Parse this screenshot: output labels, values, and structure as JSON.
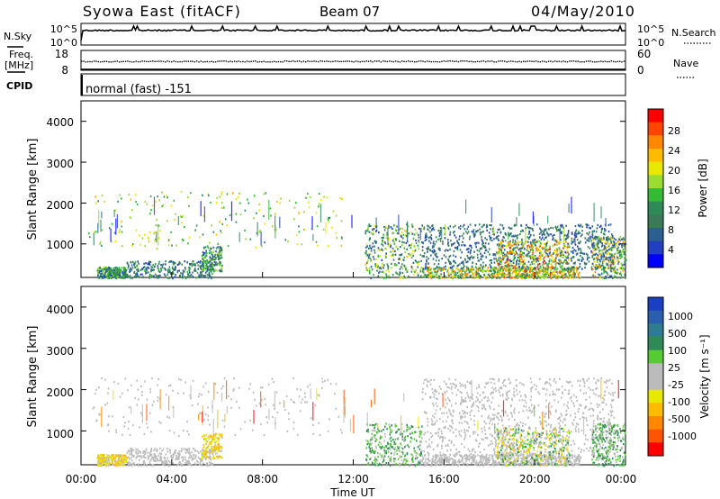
{
  "header": {
    "station": "Syowa East (fitACF)",
    "beam": "Beam 07",
    "date": "04/May/2010"
  },
  "status_panels": {
    "nsky_label": "N.Sky",
    "nsearch_label": "N.Search",
    "nsky_ticks": [
      "10^5",
      "10^0"
    ],
    "nsearch_ticks": [
      "10^5",
      "10^0"
    ],
    "freq_label": "Freq.",
    "freq_unit": "[MHz]",
    "freq_ticks": [
      "18",
      "8"
    ],
    "nave_label": "Nave",
    "nave_ticks": [
      "60",
      "0"
    ],
    "cpid_label": "CPID",
    "cpid_value": "normal (fast) -151"
  },
  "axes": {
    "ylabel": "Slant Range [km]",
    "y_ticks": [
      "4000",
      "3000",
      "2000",
      "1000"
    ],
    "x_ticks": [
      "00:00",
      "04:00",
      "08:00",
      "12:00",
      "16:00",
      "20:00",
      "00:00"
    ],
    "xlabel": "Time UT"
  },
  "power_colorbar": {
    "label": "Power [dB]",
    "ticks": [
      "28",
      "24",
      "20",
      "16",
      "12",
      "8",
      "4"
    ],
    "colors": [
      "#ff0000",
      "#ff4400",
      "#ff8800",
      "#ffbb00",
      "#e8e800",
      "#99dd33",
      "#33bb33",
      "#2e8b57",
      "#3a7a5a",
      "#2a5f8f",
      "#2040c0",
      "#0000ff"
    ]
  },
  "velocity_colorbar": {
    "label": "Velocity [m s⁻¹]",
    "ticks": [
      "1000",
      "500",
      "100",
      "25",
      "-25",
      "-100",
      "-500",
      "-1000"
    ],
    "colors": [
      "#1a3fc0",
      "#2a5fb0",
      "#2e7c8f",
      "#2e8b57",
      "#55cc33",
      "#bbbbbb",
      "#bbbbbb",
      "#e8e800",
      "#ffbb00",
      "#ff8800",
      "#ff5500",
      "#ff0000"
    ]
  },
  "chart_data": [
    {
      "type": "heatmap",
      "name_in_plot": "power",
      "x_range_hours": [
        0,
        24
      ],
      "ylim": [
        180,
        4500
      ],
      "y_ticks": [
        1000,
        2000,
        3000,
        4000
      ],
      "colorbar_range_db": [
        0,
        32
      ],
      "scatter_regions": [
        {
          "t": [
            0.7,
            2.0
          ],
          "r": [
            180,
            450
          ],
          "v": [
            4,
            18
          ],
          "n": 260
        },
        {
          "t": [
            2.0,
            5.8
          ],
          "r": [
            180,
            600
          ],
          "v": [
            4,
            14
          ],
          "n": 300
        },
        {
          "t": [
            5.3,
            6.2
          ],
          "r": [
            350,
            950
          ],
          "v": [
            4,
            18
          ],
          "n": 140
        },
        {
          "t": [
            0.3,
            11.5
          ],
          "r": [
            900,
            2300
          ],
          "v": [
            12,
            22
          ],
          "n": 220
        },
        {
          "t": [
            12.5,
            15.0
          ],
          "r": [
            180,
            1500
          ],
          "v": [
            4,
            22
          ],
          "n": 320
        },
        {
          "t": [
            15.0,
            22.0
          ],
          "r": [
            180,
            450
          ],
          "v": [
            8,
            26
          ],
          "n": 520
        },
        {
          "t": [
            15.0,
            23.5
          ],
          "r": [
            400,
            1500
          ],
          "v": [
            4,
            12
          ],
          "n": 900
        },
        {
          "t": [
            18.3,
            21.5
          ],
          "r": [
            180,
            1100
          ],
          "v": [
            12,
            30
          ],
          "n": 420
        },
        {
          "t": [
            22.5,
            24.0
          ],
          "r": [
            180,
            1200
          ],
          "v": [
            4,
            26
          ],
          "n": 300
        }
      ]
    },
    {
      "type": "heatmap",
      "name_in_plot": "velocity",
      "x_range_hours": [
        0,
        24
      ],
      "ylim": [
        180,
        4500
      ],
      "y_ticks": [
        1000,
        2000,
        3000,
        4000
      ],
      "colorbar_range": [
        -1000,
        1000
      ],
      "scatter_regions": [
        {
          "t": [
            0.7,
            2.0
          ],
          "r": [
            180,
            450
          ],
          "v": [
            -500,
            -25
          ],
          "n": 240
        },
        {
          "t": [
            2.0,
            5.8
          ],
          "r": [
            180,
            600
          ],
          "v": [
            -100,
            -25
          ],
          "n": 320
        },
        {
          "t": [
            5.3,
            6.2
          ],
          "r": [
            350,
            950
          ],
          "v": [
            -500,
            -100
          ],
          "n": 140
        },
        {
          "t": [
            0.3,
            11.5
          ],
          "r": [
            900,
            2300
          ],
          "v": [
            -100,
            -25
          ],
          "n": 200
        },
        {
          "t": [
            12.5,
            15.0
          ],
          "r": [
            180,
            1200
          ],
          "v": [
            25,
            500
          ],
          "n": 320
        },
        {
          "t": [
            15.0,
            22.0
          ],
          "r": [
            180,
            450
          ],
          "v": [
            -100,
            100
          ],
          "n": 520
        },
        {
          "t": [
            15.0,
            23.5
          ],
          "r": [
            400,
            2300
          ],
          "v": [
            -25,
            100
          ],
          "n": 900
        },
        {
          "t": [
            18.3,
            21.5
          ],
          "r": [
            180,
            1100
          ],
          "v": [
            -500,
            500
          ],
          "n": 420
        },
        {
          "t": [
            22.5,
            24.0
          ],
          "r": [
            180,
            1200
          ],
          "v": [
            25,
            500
          ],
          "n": 260
        }
      ]
    }
  ]
}
